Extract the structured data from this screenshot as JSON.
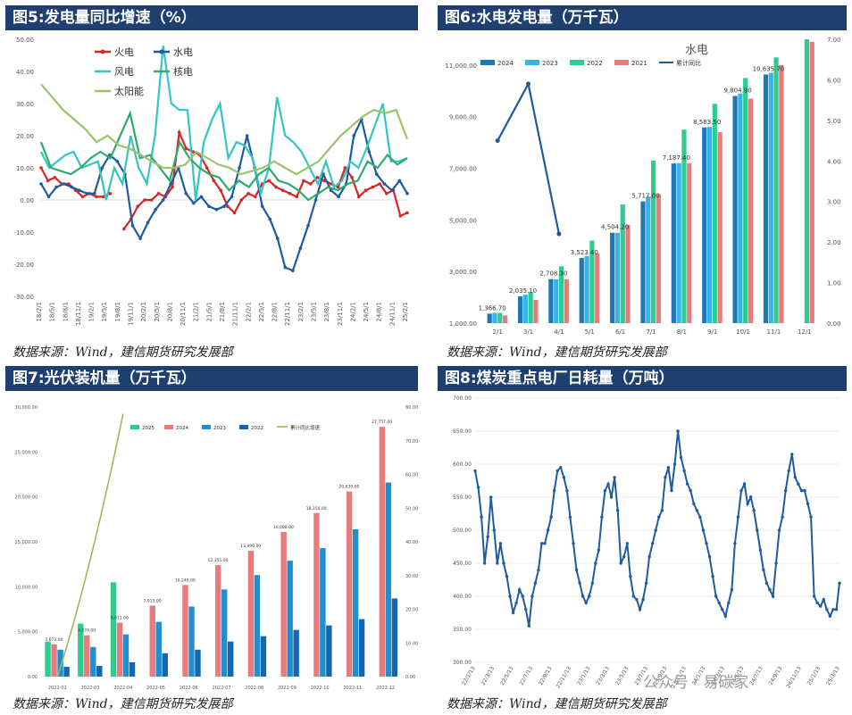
{
  "panels": {
    "p5": {
      "title": "图5:发电量同比增速（%）"
    },
    "p6": {
      "title": "图6:水电发电量（万千瓦）"
    },
    "p7": {
      "title": "图7:光伏装机量（万千瓦）"
    },
    "p8": {
      "title": "图8:煤炭重点电厂日耗量（万吨）"
    }
  },
  "source_text": "数据来源：Wind，建信期货研究发展部",
  "watermark": "公众号 · 易碳家",
  "chart_data": [
    {
      "id": "p5",
      "type": "line",
      "ylim": [
        -30,
        50
      ],
      "yticks": [
        "50.00",
        "40.00",
        "30.00",
        "20.00",
        "10.00",
        "0.00",
        "-10.00",
        "-20.00",
        "-30.00"
      ],
      "xticks": [
        "18/2/1",
        "18/5/1",
        "18/8/1",
        "18/11/1",
        "19/2/1",
        "19/5/1",
        "19/8/1",
        "19/11/1",
        "20/2/1",
        "20/5/1",
        "20/8/1",
        "20/11/1",
        "21/2/1",
        "21/5/1",
        "21/8/1",
        "21/11/1",
        "22/2/1",
        "22/5/1",
        "22/8/1",
        "22/11/1",
        "23/2/1",
        "23/5/1",
        "23/8/1",
        "23/11/1",
        "24/2/1",
        "24/5/1",
        "24/8/1",
        "24/11/1",
        "25/2/1"
      ],
      "series": [
        {
          "name": "火电",
          "color": "#d62728",
          "marker": true,
          "values": [
            10,
            6,
            7,
            5,
            5,
            3,
            1,
            2,
            1,
            1,
            2,
            null,
            -9,
            -6,
            -2,
            0,
            0,
            2,
            1,
            4,
            21,
            16,
            15,
            14,
            10,
            6,
            3,
            -2,
            -4,
            0,
            2,
            1,
            5,
            6,
            4,
            3,
            2,
            1,
            6,
            5,
            7,
            6,
            5,
            4,
            10,
            7,
            1,
            3,
            4,
            5,
            2,
            3,
            -5,
            -4
          ]
        },
        {
          "name": "水电",
          "color": "#1f5b9e",
          "marker": true,
          "values": [
            5,
            1,
            4,
            5,
            4,
            3,
            2,
            2,
            10,
            14,
            12,
            8,
            -8,
            -12,
            -7,
            -3,
            0,
            5,
            10,
            2,
            -1,
            1,
            -2,
            -3,
            -2,
            1,
            10,
            20,
            10,
            -2,
            -6,
            -12,
            -21,
            -22,
            -15,
            -8,
            0,
            8,
            3,
            1,
            5,
            20,
            25,
            15,
            8,
            5,
            3,
            6,
            2
          ]
        },
        {
          "name": "风电",
          "color": "#33c5c5",
          "marker": false,
          "values": [
            15,
            10,
            12,
            14,
            15,
            10,
            11,
            12,
            0,
            10,
            5,
            20,
            10,
            5,
            20,
            48,
            30,
            28,
            28,
            0,
            18,
            25,
            30,
            13,
            18,
            17,
            13,
            2,
            10,
            32,
            20,
            18,
            15,
            10,
            5,
            12,
            4,
            6,
            12,
            10,
            16,
            23,
            30,
            12,
            12,
            13
          ]
        },
        {
          "name": "核电",
          "color": "#2eaa6e",
          "marker": false,
          "values": [
            18,
            10,
            9,
            8,
            10,
            13,
            15,
            13,
            20,
            27,
            13,
            14,
            10,
            6,
            18,
            13,
            10,
            8,
            7,
            3,
            6,
            4,
            8,
            10,
            6,
            5,
            3,
            0,
            2,
            4,
            3,
            5,
            6,
            12,
            10,
            14,
            11,
            13
          ]
        },
        {
          "name": "太阳能",
          "color": "#9bc46a",
          "marker": false,
          "values": [
            36,
            32,
            28,
            25,
            22,
            18,
            20,
            17,
            16,
            14,
            12,
            10,
            10,
            11,
            15,
            13,
            11,
            10,
            8,
            9,
            10,
            12,
            10,
            8,
            10,
            12,
            16,
            20,
            23,
            26,
            28,
            27,
            28,
            19
          ]
        }
      ]
    },
    {
      "id": "p6",
      "type": "bar",
      "title": "水电",
      "categories": [
        "2/1",
        "3/1",
        "4/1",
        "5/1",
        "6/1",
        "7/1",
        "8/1",
        "9/1",
        "10/1",
        "11/1",
        "12/1"
      ],
      "ylim": [
        1000,
        12000
      ],
      "yticks": [
        "11,000.00",
        "9,000.00",
        "7,000.00",
        "5,000.00",
        "3,000.00",
        "1,000.00"
      ],
      "y2lim": [
        0,
        7
      ],
      "y2ticks": [
        "7.00",
        "6.00",
        "5.00",
        "4.00",
        "3.00",
        "2.00",
        "1.00",
        "0.00"
      ],
      "series": [
        {
          "name": "2024",
          "color": "#1f77b4",
          "values": [
            1366.7,
            2035.1,
            2708.3,
            3523.4,
            4504.2,
            5717.0,
            7187.4,
            8583.5,
            9804.9,
            10635.7,
            null
          ],
          "labels": [
            "1,366.70",
            "2,035.10",
            "2,708.30",
            "3,523.40",
            "4,504.20",
            "5,717.00",
            "7,187.40",
            "8,583.50",
            "9,804.90",
            "10,635.70",
            ""
          ]
        },
        {
          "name": "2023",
          "color": "#33b5e5",
          "values": [
            1400,
            2100,
            2700,
            3600,
            4500,
            5900,
            7200,
            8600,
            9900,
            10700,
            null
          ]
        },
        {
          "name": "2022",
          "color": "#2ecc8f",
          "values": [
            1400,
            2200,
            3200,
            4200,
            5600,
            7300,
            8500,
            9500,
            10500,
            11300,
            12000
          ]
        },
        {
          "name": "2021",
          "color": "#e87c7c",
          "values": [
            1300,
            1900,
            2700,
            3700,
            4800,
            6000,
            7200,
            8400,
            9700,
            11000,
            11900
          ]
        }
      ],
      "line": {
        "name": "累计同比",
        "color": "#1f5b9e",
        "values": [
          4.5,
          5.9,
          2.2
        ]
      }
    },
    {
      "id": "p7",
      "type": "bar",
      "categories": [
        "2022-02",
        "2022-03",
        "2022-04",
        "2022-05",
        "2022-06",
        "2022-07",
        "2022-08",
        "2022-09",
        "2022-10",
        "2022-11",
        "2022-12"
      ],
      "ylim": [
        0,
        30000
      ],
      "yticks": [
        "30,000.00",
        "25,000.00",
        "20,000.00",
        "15,000.00",
        "10,000.00",
        "5,000.00",
        "0.00"
      ],
      "y2lim": [
        0,
        80
      ],
      "y2ticks": [
        "80.00",
        "70.00",
        "60.00",
        "50.00",
        "40.00",
        "30.00",
        "20.00",
        "10.00",
        "0.00"
      ],
      "series": [
        {
          "name": "2025",
          "color": "#2ecc8f",
          "values": [
            3900,
            5900,
            10500,
            null,
            null,
            null,
            null,
            null,
            null,
            null,
            null
          ]
        },
        {
          "name": "2024",
          "color": "#e87c7c",
          "values": [
            3600,
            4600,
            6000,
            7900,
            10200,
            12400,
            14000,
            16100,
            18200,
            20600,
            27800
          ],
          "labels": [
            "3,672.00",
            "4,574.00",
            "6,011.00",
            "7,915.00",
            "10,248.00",
            "12,355.00",
            "13,999.00",
            "16,088.00",
            "18,150.00",
            "20,630.00",
            "27,757.00"
          ]
        },
        {
          "name": "2023",
          "color": "#1f8fd0",
          "values": [
            3000,
            3300,
            4700,
            6100,
            7800,
            9700,
            11300,
            12900,
            14300,
            16400,
            21600
          ]
        },
        {
          "name": "2022",
          "color": "#1565b0",
          "values": [
            1100,
            1200,
            1600,
            2600,
            3000,
            3900,
            4500,
            5200,
            5700,
            6400,
            8700
          ]
        }
      ],
      "line": {
        "name": "累计同比增速",
        "color": "#9bbb59",
        "values": [
          0,
          20,
          78
        ]
      }
    },
    {
      "id": "p8",
      "type": "line",
      "ylim": [
        300,
        700
      ],
      "yticks": [
        "700.00",
        "650.00",
        "600.00",
        "550.00",
        "500.00",
        "450.00",
        "400.00",
        "350.00",
        "300.00"
      ],
      "xticks": [
        "22/1/13",
        "22/3/13",
        "22/5/13",
        "22/7/13",
        "22/9/13",
        "22/11/13",
        "23/1/13",
        "23/3/13",
        "23/5/13",
        "23/7/13",
        "23/9/13",
        "23/11/13",
        "24/1/13",
        "24/3/13",
        "24/5/13",
        "24/7/13",
        "24/9/13",
        "24/11/13",
        "25/1/13",
        "25/3/13"
      ],
      "series": [
        {
          "name": "日耗量",
          "color": "#1f5b9e",
          "values": [
            590,
            565,
            520,
            450,
            490,
            550,
            500,
            450,
            480,
            450,
            430,
            400,
            375,
            390,
            410,
            400,
            380,
            355,
            400,
            420,
            440,
            480,
            480,
            500,
            520,
            560,
            590,
            595,
            580,
            560,
            520,
            480,
            440,
            420,
            400,
            390,
            400,
            420,
            450,
            470,
            520,
            560,
            570,
            550,
            580,
            530,
            450,
            460,
            480,
            430,
            400,
            395,
            380,
            395,
            420,
            460,
            480,
            500,
            520,
            530,
            580,
            595,
            560,
            600,
            650,
            610,
            590,
            570,
            560,
            540,
            530,
            520,
            500,
            480,
            460,
            430,
            400,
            390,
            380,
            370,
            390,
            410,
            480,
            520,
            560,
            570,
            540,
            550,
            530,
            500,
            470,
            440,
            420,
            410,
            400,
            450,
            500,
            520,
            560,
            590,
            615,
            580,
            570,
            560,
            560,
            540,
            520,
            400,
            390,
            385,
            395,
            380,
            370,
            380,
            380,
            420
          ]
        }
      ]
    }
  ]
}
